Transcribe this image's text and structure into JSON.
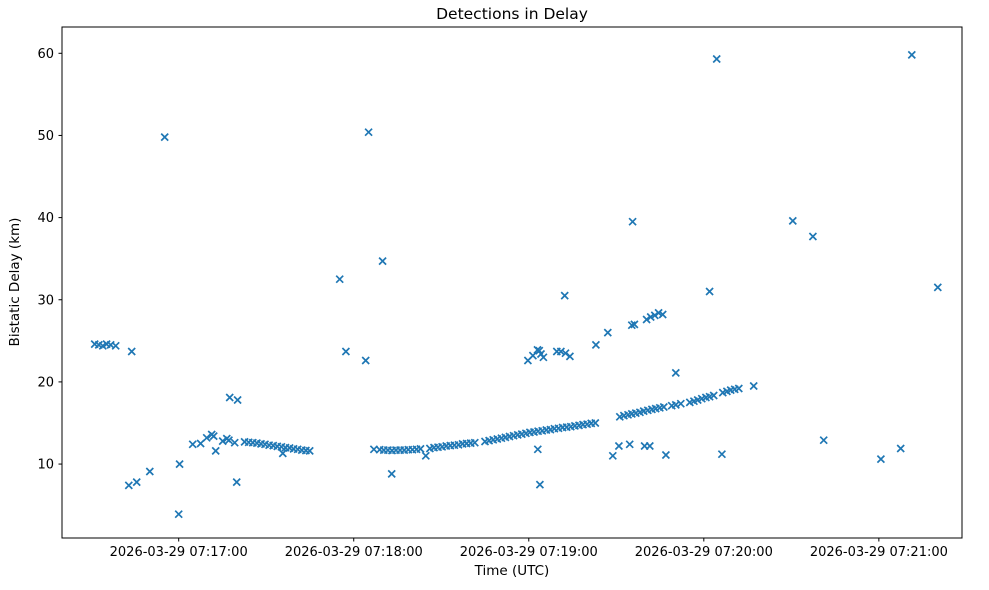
{
  "chart_data": {
    "type": "scatter",
    "title": "Detections in Delay",
    "xlabel": "Time (UTC)",
    "ylabel": "Bistatic Delay (km)",
    "legend": null,
    "grid": false,
    "marker": {
      "symbol": "x",
      "color": "#1f77b4",
      "size": 7,
      "stroke_width": 1.7
    },
    "axis_color": "#000000",
    "x_unit": "seconds after 2026-03-29 07:16:00 UTC",
    "x_range": [
      20,
      328.5
    ],
    "y_range": [
      1.0,
      63.2
    ],
    "x_ticks": [
      {
        "value": 60,
        "label": "2026-03-29 07:17:00"
      },
      {
        "value": 120,
        "label": "2026-03-29 07:18:00"
      },
      {
        "value": 180,
        "label": "2026-03-29 07:19:00"
      },
      {
        "value": 240,
        "label": "2026-03-29 07:20:00"
      },
      {
        "value": 300,
        "label": "2026-03-29 07:21:00"
      }
    ],
    "y_ticks": [
      10,
      20,
      30,
      40,
      50,
      60
    ],
    "points": [
      [
        31.2,
        24.6
      ],
      [
        32.6,
        24.5
      ],
      [
        34.0,
        24.4
      ],
      [
        35.3,
        24.6
      ],
      [
        36.7,
        24.5
      ],
      [
        38.4,
        24.4
      ],
      [
        43.9,
        23.7
      ],
      [
        42.9,
        7.4
      ],
      [
        45.6,
        7.8
      ],
      [
        50.1,
        9.1
      ],
      [
        55.2,
        49.8
      ],
      [
        60.0,
        3.9
      ],
      [
        60.3,
        10.0
      ],
      [
        64.8,
        12.4
      ],
      [
        67.5,
        12.5
      ],
      [
        69.6,
        13.2
      ],
      [
        71.3,
        13.6
      ],
      [
        72.0,
        13.4
      ],
      [
        72.7,
        11.6
      ],
      [
        75.1,
        12.8
      ],
      [
        76.5,
        13.1
      ],
      [
        77.2,
        12.9
      ],
      [
        79.2,
        12.6
      ],
      [
        77.5,
        18.1
      ],
      [
        80.2,
        17.8
      ],
      [
        79.9,
        7.8
      ],
      [
        82.6,
        12.7
      ],
      [
        84.0,
        12.65
      ],
      [
        85.4,
        12.6
      ],
      [
        86.8,
        12.55
      ],
      [
        88.2,
        12.45
      ],
      [
        89.6,
        12.4
      ],
      [
        91.0,
        12.3
      ],
      [
        92.4,
        12.25
      ],
      [
        93.8,
        12.15
      ],
      [
        95.2,
        12.1
      ],
      [
        96.6,
        12.0
      ],
      [
        98.0,
        11.95
      ],
      [
        99.4,
        11.85
      ],
      [
        100.8,
        11.8
      ],
      [
        102.2,
        11.7
      ],
      [
        103.6,
        11.65
      ],
      [
        104.9,
        11.6
      ],
      [
        95.7,
        11.3
      ],
      [
        115.2,
        32.5
      ],
      [
        117.3,
        23.7
      ],
      [
        124.1,
        22.6
      ],
      [
        125.1,
        50.4
      ],
      [
        129.9,
        34.7
      ],
      [
        126.9,
        11.8
      ],
      [
        133.0,
        8.8
      ],
      [
        128.9,
        11.75
      ],
      [
        130.3,
        11.7
      ],
      [
        131.7,
        11.7
      ],
      [
        133.1,
        11.65
      ],
      [
        134.5,
        11.7
      ],
      [
        135.9,
        11.7
      ],
      [
        137.3,
        11.7
      ],
      [
        138.7,
        11.75
      ],
      [
        140.1,
        11.75
      ],
      [
        141.5,
        11.8
      ],
      [
        142.9,
        11.85
      ],
      [
        144.7,
        11.0
      ],
      [
        146.1,
        11.9
      ],
      [
        147.5,
        12.0
      ],
      [
        148.9,
        12.05
      ],
      [
        150.3,
        12.1
      ],
      [
        151.7,
        12.2
      ],
      [
        153.1,
        12.25
      ],
      [
        154.5,
        12.3
      ],
      [
        155.9,
        12.35
      ],
      [
        157.3,
        12.45
      ],
      [
        158.7,
        12.5
      ],
      [
        160.1,
        12.55
      ],
      [
        161.5,
        12.6
      ],
      [
        165.0,
        12.75
      ],
      [
        166.4,
        12.85
      ],
      [
        167.8,
        12.95
      ],
      [
        169.2,
        13.05
      ],
      [
        170.6,
        13.15
      ],
      [
        172.0,
        13.25
      ],
      [
        173.4,
        13.35
      ],
      [
        174.8,
        13.45
      ],
      [
        176.2,
        13.55
      ],
      [
        177.6,
        13.65
      ],
      [
        179.0,
        13.75
      ],
      [
        180.4,
        13.85
      ],
      [
        181.8,
        13.9
      ],
      [
        183.2,
        14.0
      ],
      [
        184.6,
        14.05
      ],
      [
        186.0,
        14.15
      ],
      [
        187.4,
        14.2
      ],
      [
        188.8,
        14.3
      ],
      [
        190.2,
        14.35
      ],
      [
        191.6,
        14.45
      ],
      [
        193.0,
        14.5
      ],
      [
        194.4,
        14.55
      ],
      [
        195.8,
        14.65
      ],
      [
        197.2,
        14.7
      ],
      [
        198.6,
        14.8
      ],
      [
        200.0,
        14.85
      ],
      [
        201.4,
        14.95
      ],
      [
        202.8,
        15.0
      ],
      [
        183.1,
        11.8
      ],
      [
        183.8,
        7.5
      ],
      [
        179.7,
        22.6
      ],
      [
        181.4,
        23.2
      ],
      [
        183.0,
        23.9
      ],
      [
        183.6,
        23.8
      ],
      [
        184.2,
        23.4
      ],
      [
        185.0,
        23.0
      ],
      [
        189.6,
        23.7
      ],
      [
        191.0,
        23.7
      ],
      [
        192.6,
        23.5
      ],
      [
        194.1,
        23.1
      ],
      [
        192.3,
        30.5
      ],
      [
        203.0,
        24.5
      ],
      [
        207.1,
        26.0
      ],
      [
        215.6,
        39.5
      ],
      [
        215.3,
        26.9
      ],
      [
        216.2,
        27.0
      ],
      [
        220.4,
        27.6
      ],
      [
        221.8,
        27.9
      ],
      [
        223.2,
        28.1
      ],
      [
        224.5,
        28.4
      ],
      [
        225.9,
        28.2
      ],
      [
        230.4,
        21.1
      ],
      [
        208.8,
        11.0
      ],
      [
        210.9,
        12.2
      ],
      [
        214.6,
        12.4
      ],
      [
        219.7,
        12.2
      ],
      [
        221.5,
        12.2
      ],
      [
        227.0,
        11.1
      ],
      [
        246.2,
        11.2
      ],
      [
        211.2,
        15.75
      ],
      [
        212.6,
        15.9
      ],
      [
        214.0,
        16.0
      ],
      [
        215.3,
        16.1
      ],
      [
        216.7,
        16.2
      ],
      [
        218.1,
        16.3
      ],
      [
        219.4,
        16.45
      ],
      [
        220.8,
        16.55
      ],
      [
        222.2,
        16.65
      ],
      [
        223.5,
        16.75
      ],
      [
        224.9,
        16.85
      ],
      [
        226.3,
        16.95
      ],
      [
        229.0,
        17.1
      ],
      [
        230.4,
        17.2
      ],
      [
        232.1,
        17.35
      ],
      [
        235.2,
        17.5
      ],
      [
        236.6,
        17.65
      ],
      [
        237.9,
        17.8
      ],
      [
        239.3,
        17.95
      ],
      [
        240.7,
        18.1
      ],
      [
        242.0,
        18.2
      ],
      [
        243.4,
        18.35
      ],
      [
        246.5,
        18.7
      ],
      [
        247.9,
        18.85
      ],
      [
        249.2,
        19.0
      ],
      [
        250.6,
        19.1
      ],
      [
        252.0,
        19.2
      ],
      [
        257.1,
        19.5
      ],
      [
        242.0,
        31.0
      ],
      [
        244.4,
        59.3
      ],
      [
        270.5,
        39.6
      ],
      [
        277.4,
        37.7
      ],
      [
        281.1,
        12.9
      ],
      [
        300.7,
        10.6
      ],
      [
        307.5,
        11.9
      ],
      [
        311.3,
        59.8
      ],
      [
        320.2,
        31.5
      ]
    ]
  }
}
